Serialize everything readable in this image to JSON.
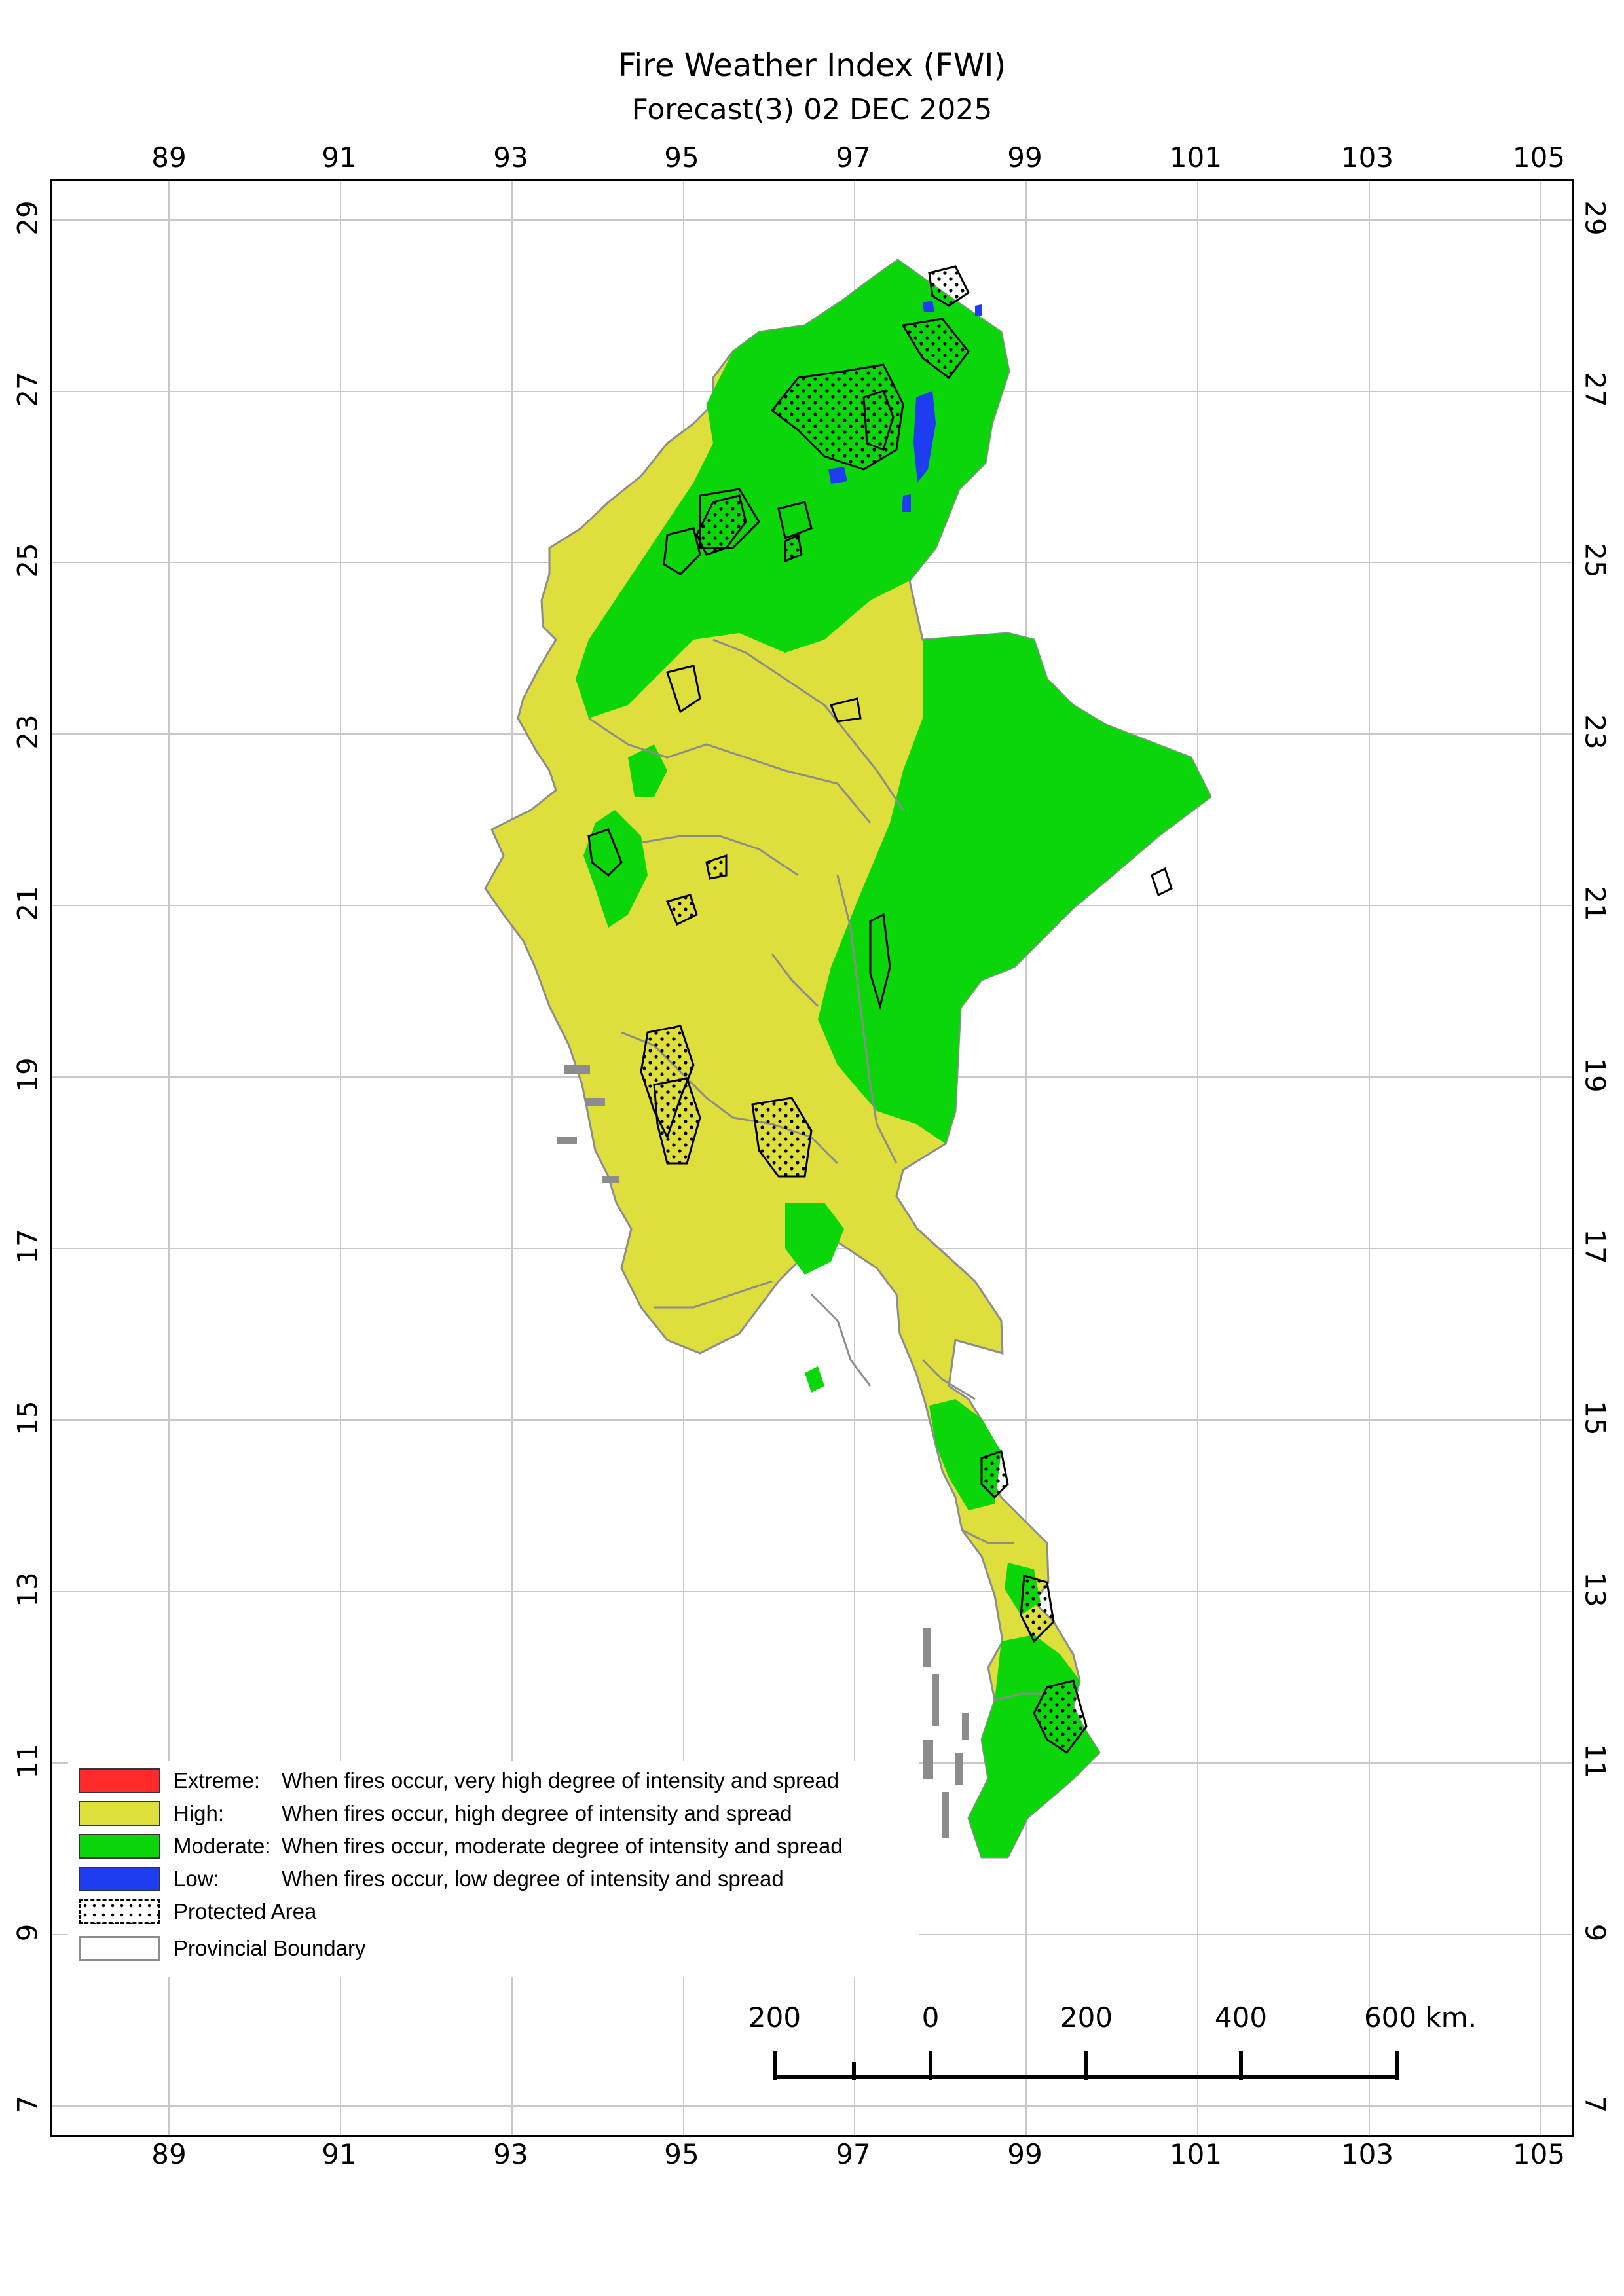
{
  "title": "Fire Weather Index (FWI)",
  "subtitle": "Forecast(3) 02 DEC 2025",
  "axes": {
    "longitudes": [
      "89",
      "91",
      "93",
      "95",
      "97",
      "99",
      "101",
      "103",
      "105"
    ],
    "latitudes": [
      "29",
      "27",
      "25",
      "23",
      "21",
      "19",
      "17",
      "15",
      "13",
      "11",
      "9",
      "7"
    ]
  },
  "colors": {
    "extreme": "#ff2a2a",
    "high": "#dede3c",
    "moderate": "#0ad60a",
    "low": "#1e3cf0",
    "boundary": "#8c8c8c",
    "grid": "#c8c8c8"
  },
  "legend": [
    {
      "key": "extreme",
      "label": "Extreme:",
      "desc": "When fires occur, very high degree of intensity and spread"
    },
    {
      "key": "high",
      "label": "High:",
      "desc": "When fires occur, high degree of intensity and spread"
    },
    {
      "key": "moderate",
      "label": "Moderate:",
      "desc": "When fires occur, moderate degree of intensity and spread"
    },
    {
      "key": "low",
      "label": "Low:",
      "desc": "When fires occur, low degree of intensity and spread"
    },
    {
      "key": "protected",
      "label": "Protected Area",
      "desc": ""
    },
    {
      "key": "provincial",
      "label": "Provincial Boundary",
      "desc": ""
    }
  ],
  "scale_bar": {
    "labels": [
      "200",
      "0",
      "200",
      "400",
      "600 km."
    ]
  }
}
